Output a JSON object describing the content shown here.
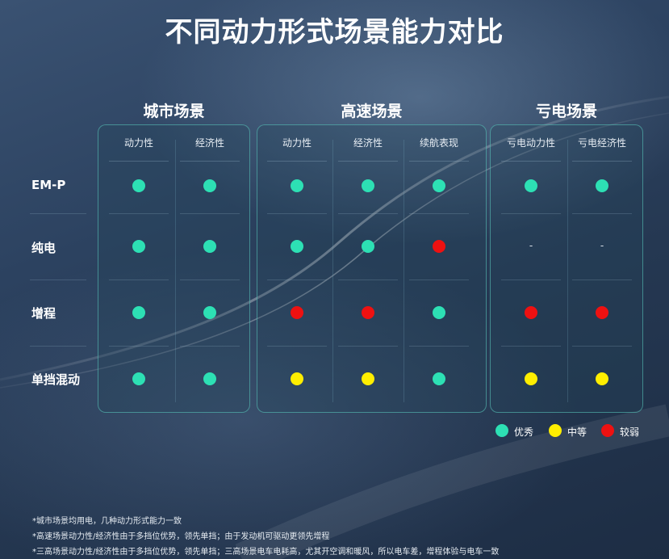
{
  "title": "不同动力形式场景能力对比",
  "groups": [
    {
      "name": "城市场景",
      "columns": [
        "动力性",
        "经济性"
      ]
    },
    {
      "name": "高速场景",
      "columns": [
        "动力性",
        "经济性",
        "续航表现"
      ]
    },
    {
      "name": "亏电场景",
      "columns": [
        "亏电动力性",
        "亏电经济性"
      ]
    }
  ],
  "rows": [
    {
      "label": "EM-P",
      "ratings": [
        "good",
        "good",
        "good",
        "good",
        "good",
        "good",
        "good"
      ]
    },
    {
      "label": "纯电",
      "ratings": [
        "good",
        "good",
        "good",
        "good",
        "weak",
        "-",
        "-"
      ]
    },
    {
      "label": "增程",
      "ratings": [
        "good",
        "good",
        "weak",
        "weak",
        "good",
        "weak",
        "weak"
      ]
    },
    {
      "label": "单挡混动",
      "ratings": [
        "good",
        "good",
        "medium",
        "medium",
        "good",
        "medium",
        "medium"
      ]
    }
  ],
  "rating_colors": {
    "good": "#2de0b4",
    "medium": "#ffee00",
    "weak": "#ee1111"
  },
  "legend": [
    {
      "key": "good",
      "label": "优秀"
    },
    {
      "key": "medium",
      "label": "中等"
    },
    {
      "key": "weak",
      "label": "较弱"
    }
  ],
  "notes": [
    "*城市场景均用电，几种动力形式能力一致",
    "*高速场景动力性/经济性由于多挡位优势，领先单挡；由于发动机可驱动更领先增程",
    "*三高场景动力性/经济性由于多挡位优势，领先单挡；三高场景电车电耗高，尤其开空调和暖风，所以电车差，增程体验与电车一致"
  ]
}
